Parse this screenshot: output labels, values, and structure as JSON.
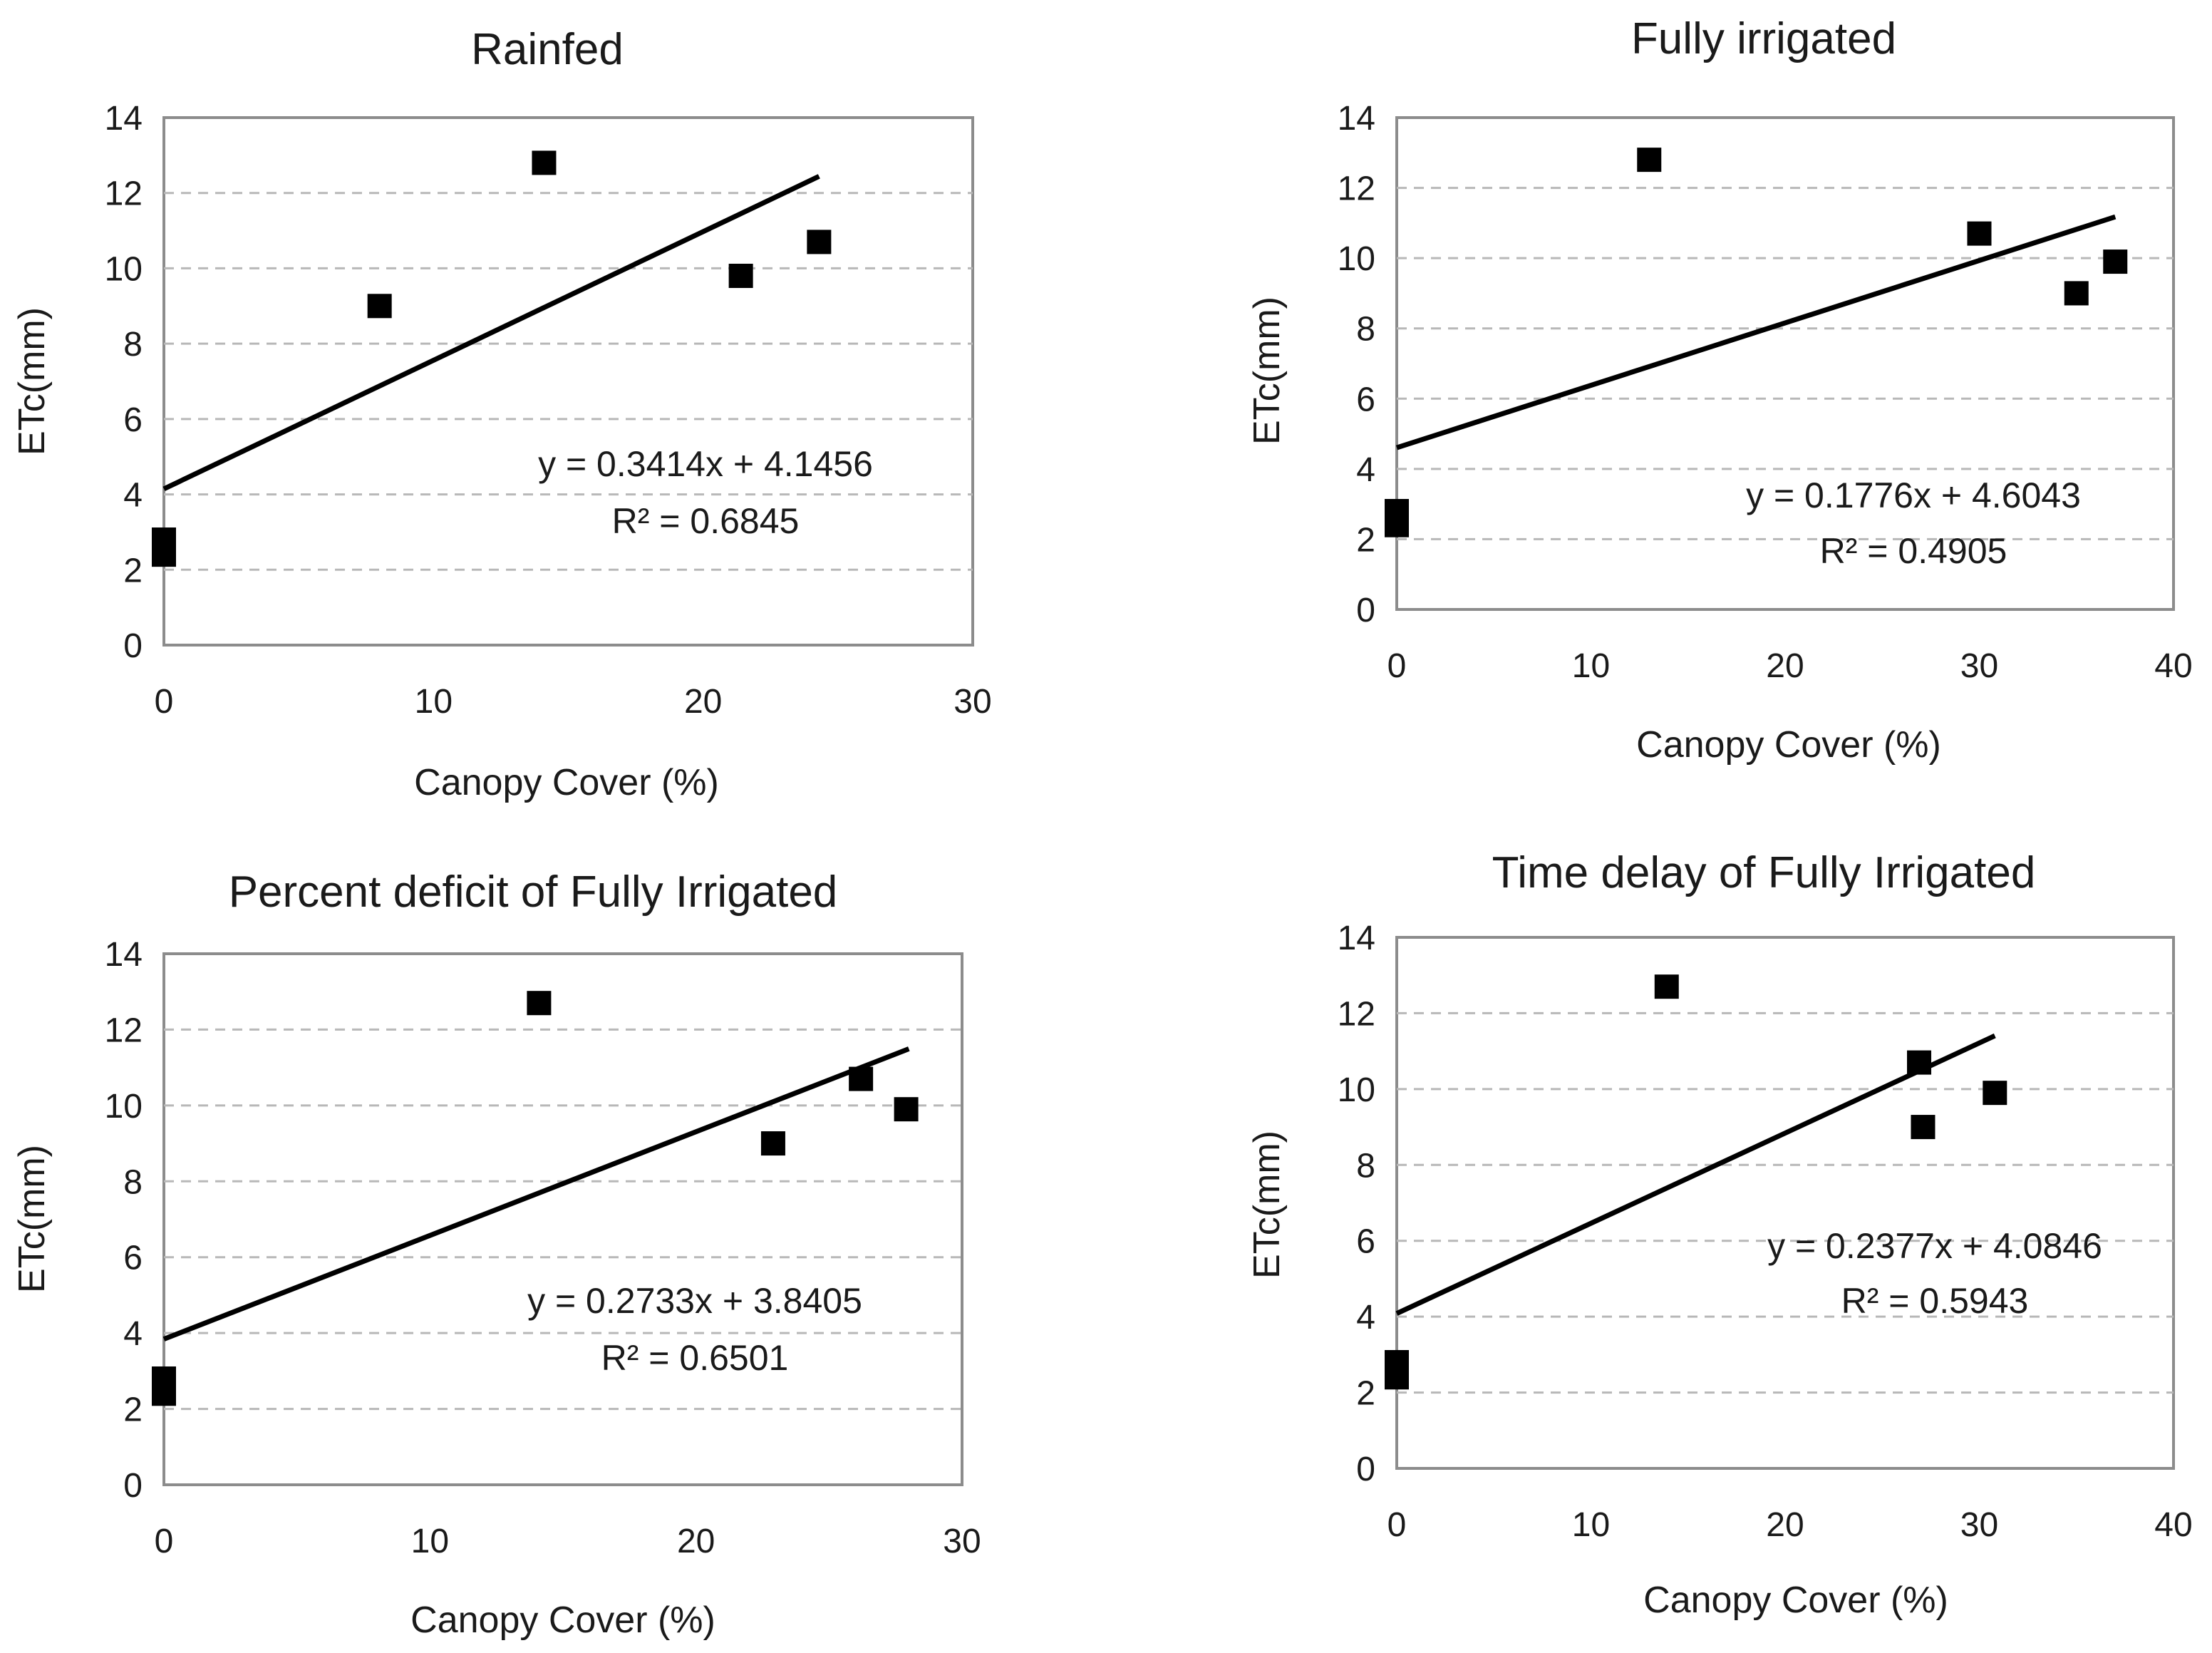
{
  "chart_data": [
    {
      "type": "scatter",
      "title": "Rainfed",
      "xlabel": "Canopy Cover (%)",
      "ylabel": "ETc(mm)",
      "xlim": [
        0,
        30
      ],
      "ylim": [
        0,
        14
      ],
      "xticks": [
        "0",
        "10",
        "20",
        "30"
      ],
      "yticks": [
        "0",
        "2",
        "4",
        "6",
        "8",
        "10",
        "12",
        "14"
      ],
      "grid": true,
      "points": {
        "x": [
          0,
          0,
          0,
          8,
          14.1,
          21.4,
          24.3
        ],
        "y": [
          2.4,
          2.6,
          2.8,
          9.0,
          12.8,
          9.8,
          10.7
        ]
      },
      "trendline": {
        "slope": 0.3414,
        "intercept": 4.1456,
        "x_range": [
          0,
          24.3
        ]
      },
      "equation": "y = 0.3414x + 4.1456",
      "r_squared": "R² = 0.6845"
    },
    {
      "type": "scatter",
      "title": "Fully irrigated",
      "xlabel": "Canopy Cover (%)",
      "ylabel": "ETc(mm)",
      "xlim": [
        0,
        40
      ],
      "ylim": [
        0,
        14
      ],
      "xticks": [
        "0",
        "10",
        "20",
        "30",
        "40"
      ],
      "yticks": [
        "0",
        "2",
        "4",
        "6",
        "8",
        "10",
        "12",
        "14"
      ],
      "grid": true,
      "points": {
        "x": [
          0,
          0,
          0,
          13,
          30,
          35,
          37
        ],
        "y": [
          2.4,
          2.6,
          2.8,
          12.8,
          10.7,
          9.0,
          9.9
        ]
      },
      "trendline": {
        "slope": 0.1776,
        "intercept": 4.6043,
        "x_range": [
          0,
          37
        ]
      },
      "equation": "y = 0.1776x + 4.6043",
      "r_squared": "R² = 0.4905"
    },
    {
      "type": "scatter",
      "title": "Percent deficit of Fully Irrigated",
      "xlabel": "Canopy Cover (%)",
      "ylabel": "ETc(mm)",
      "xlim": [
        0,
        30
      ],
      "ylim": [
        0,
        14
      ],
      "xticks": [
        "0",
        "10",
        "20",
        "30"
      ],
      "yticks": [
        "0",
        "2",
        "4",
        "6",
        "8",
        "10",
        "12",
        "14"
      ],
      "grid": true,
      "points": {
        "x": [
          0,
          0,
          0,
          14.1,
          22.9,
          26.2,
          27.9
        ],
        "y": [
          2.4,
          2.6,
          2.8,
          12.7,
          9.0,
          10.7,
          9.9
        ]
      },
      "trendline": {
        "slope": 0.2733,
        "intercept": 3.8405,
        "x_range": [
          0,
          28
        ]
      },
      "equation": "y = 0.2733x + 3.8405",
      "r_squared": "R² = 0.6501"
    },
    {
      "type": "scatter",
      "title": "Time delay of Fully Irrigated",
      "xlabel": "Canopy Cover (%)",
      "ylabel": "ETc(mm)",
      "xlim": [
        0,
        40
      ],
      "ylim": [
        0,
        14
      ],
      "xticks": [
        "0",
        "10",
        "20",
        "30",
        "40"
      ],
      "yticks": [
        "0",
        "2",
        "4",
        "6",
        "8",
        "10",
        "12",
        "14"
      ],
      "grid": true,
      "points": {
        "x": [
          0,
          0,
          0,
          13.9,
          26.9,
          27.1,
          30.8
        ],
        "y": [
          2.4,
          2.6,
          2.8,
          12.7,
          10.7,
          9.0,
          9.9
        ]
      },
      "trendline": {
        "slope": 0.2377,
        "intercept": 4.0846,
        "x_range": [
          0,
          30.8
        ]
      },
      "equation": "y = 0.2377x + 4.0846",
      "r_squared": "R² = 0.5943"
    }
  ]
}
